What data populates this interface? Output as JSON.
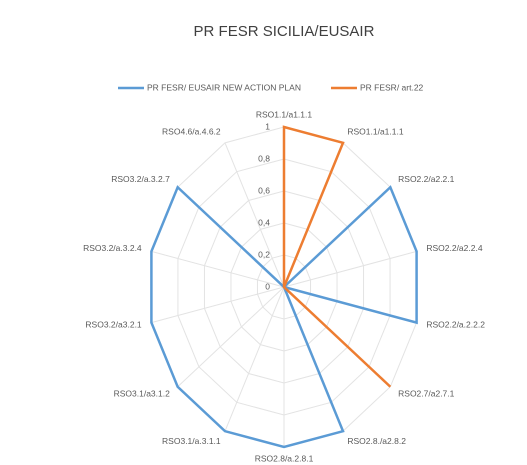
{
  "chart_data": {
    "type": "radar",
    "title": "PR FESR SICILIA/EUSAIR",
    "categories": [
      "RSO1.1/a1.1.1",
      "RSO1.1/a1.1.1",
      "RSO2.2/a2.2.1",
      "RSO2.2/a2.2.4",
      "RSO2.2/a.2.2.2",
      "RSO2.7/a2.7.1",
      "RSO2.8./a2.8.2",
      "RSO2.8/a.2.8.1",
      "RSO3.1/a.3.1.1",
      "RSO3.1/a3.1.2",
      "RSO3.2/a3.2.1",
      "RSO3.2/a.3.2.4",
      "RSO3.2/a.3.2.7",
      "RSO4.6/a.4.6.2"
    ],
    "series": [
      {
        "name": "PR FESR/ EUSAIR NEW ACTION PLAN",
        "color": "#5b9bd5",
        "values": [
          0,
          0,
          1,
          1,
          1,
          0,
          1,
          1,
          1,
          1,
          1,
          1,
          1,
          0
        ]
      },
      {
        "name": "PR FESR/ art.22",
        "color": "#ed7d31",
        "values": [
          1,
          1,
          0,
          0,
          0,
          1,
          0,
          0,
          0,
          0,
          0,
          0,
          0,
          0
        ]
      }
    ],
    "ylim": [
      0,
      1
    ],
    "yticks": [
      0,
      {
        "value": 0.2,
        "label": "0,2"
      },
      {
        "value": 0.4,
        "label": "0,4"
      },
      {
        "value": 0.6,
        "label": "0,6"
      },
      {
        "value": 0.8,
        "label": "0,8"
      },
      1
    ],
    "grid": true,
    "legend": "top"
  }
}
